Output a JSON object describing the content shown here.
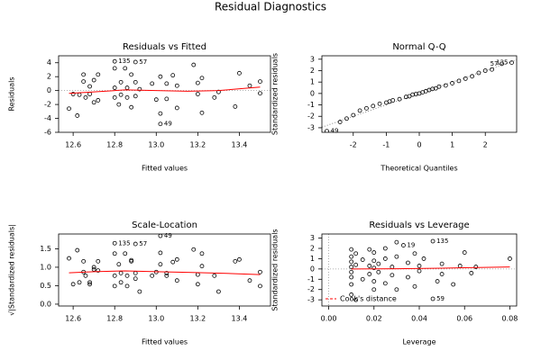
{
  "title": "Residual Diagnostics",
  "chart_data": [
    {
      "type": "scatter",
      "title": "Residuals vs Fitted",
      "x_label": "Fitted values",
      "y_label": "Residuals",
      "xlim": [
        12.53,
        13.55
      ],
      "ylim": [
        -6,
        5
      ],
      "xticks": [
        12.6,
        12.8,
        {
          "value": 13.0,
          "label": "13.0"
        },
        13.2,
        13.4
      ],
      "yticks": [
        -6,
        -4,
        -2,
        0,
        2,
        4
      ],
      "point_color": "#000000",
      "ref_hline": 0,
      "x": [
        12.58,
        12.6,
        12.62,
        12.63,
        12.65,
        12.65,
        12.66,
        12.68,
        12.68,
        12.7,
        12.7,
        12.72,
        12.72,
        12.8,
        12.8,
        12.8,
        12.8,
        12.82,
        12.83,
        12.83,
        12.85,
        12.86,
        12.86,
        12.88,
        12.88,
        12.9,
        12.9,
        12.9,
        12.92,
        12.98,
        13.0,
        13.02,
        13.02,
        13.02,
        13.05,
        13.05,
        13.08,
        13.1,
        13.1,
        13.18,
        13.2,
        13.2,
        13.22,
        13.22,
        13.28,
        13.3,
        13.38,
        13.4,
        13.45,
        13.5,
        13.5
      ],
      "y": [
        -2.6,
        -0.5,
        -3.6,
        -0.6,
        1.3,
        2.3,
        -1,
        -0.5,
        0.6,
        1.5,
        -1.7,
        2.3,
        -1.4,
        4.2,
        3.2,
        0.4,
        -1,
        -2,
        1.2,
        -0.6,
        3.2,
        0.4,
        -1,
        2.3,
        -2.4,
        4.1,
        1.2,
        -0.8,
        0.2,
        1,
        -1.3,
        -4.8,
        -3.3,
        2,
        1,
        -1.2,
        2.2,
        -2.5,
        0.7,
        3.7,
        1.1,
        -0.5,
        -3.2,
        1.8,
        -1,
        -0.2,
        -2.3,
        2.5,
        0.7,
        1.3,
        -0.4
      ],
      "point_labels": [
        null,
        null,
        null,
        null,
        null,
        null,
        null,
        null,
        null,
        null,
        null,
        null,
        null,
        "135",
        null,
        null,
        null,
        null,
        null,
        null,
        null,
        null,
        null,
        null,
        null,
        "57",
        null,
        null,
        null,
        null,
        null,
        "49",
        null,
        null,
        null,
        null,
        null,
        null,
        null,
        null,
        null,
        null,
        null,
        null,
        null,
        null,
        null,
        null,
        null,
        null,
        null
      ],
      "smooth": {
        "color": "#ff0000",
        "x": [
          12.58,
          12.7,
          12.85,
          13.0,
          13.15,
          13.3,
          13.5
        ],
        "y": [
          -0.4,
          -0.2,
          0.1,
          0,
          -0.1,
          0,
          0.5
        ]
      }
    },
    {
      "type": "scatter",
      "title": "Normal Q-Q",
      "x_label": "Theoretical Quantiles",
      "y_label": "Standardized residuals",
      "xlim": [
        -2.95,
        2.95
      ],
      "ylim": [
        -3.4,
        3.3
      ],
      "xticks": [
        -2,
        -1,
        0,
        1,
        2
      ],
      "yticks": [
        -3,
        -2,
        -1,
        0,
        1,
        2,
        3
      ],
      "point_color": "#000000",
      "x": [
        -2.8,
        -2.4,
        -2.2,
        -2.0,
        -1.8,
        -1.6,
        -1.4,
        -1.2,
        -1.0,
        -0.9,
        -0.8,
        -0.6,
        -0.4,
        -0.3,
        -0.2,
        -0.1,
        0,
        0.1,
        0.2,
        0.3,
        0.4,
        0.5,
        0.6,
        0.8,
        1.0,
        1.2,
        1.4,
        1.6,
        1.8,
        2.0,
        2.2,
        2.5,
        2.8
      ],
      "y": [
        -3.3,
        -2.5,
        -2.2,
        -1.9,
        -1.5,
        -1.3,
        -1.1,
        -0.9,
        -0.8,
        -0.7,
        -0.6,
        -0.5,
        -0.3,
        -0.25,
        -0.1,
        -0.05,
        0,
        0.1,
        0.2,
        0.3,
        0.4,
        0.45,
        0.6,
        0.7,
        0.9,
        1.1,
        1.3,
        1.5,
        1.8,
        2.0,
        2.1,
        2.6,
        2.7
      ],
      "point_labels": [
        "49",
        null,
        null,
        null,
        null,
        null,
        null,
        null,
        null,
        null,
        null,
        null,
        null,
        null,
        null,
        null,
        null,
        null,
        null,
        null,
        null,
        null,
        null,
        null,
        null,
        null,
        null,
        null,
        null,
        null,
        null,
        "57",
        "135"
      ],
      "reference": {
        "color": "#888888",
        "x": [
          -2.95,
          2.95
        ],
        "y": [
          -2.95,
          2.95
        ]
      }
    },
    {
      "type": "scatter",
      "title": "Scale-Location",
      "x_label": "Fitted values",
      "y_label": "√|Standardized residuals|",
      "xlim": [
        12.53,
        13.55
      ],
      "ylim": [
        -0.05,
        1.9
      ],
      "xticks": [
        12.6,
        12.8,
        {
          "value": 13.0,
          "label": "13.0"
        },
        13.2,
        13.4
      ],
      "yticks": [
        {
          "value": 0,
          "label": "0.0"
        },
        0.5,
        {
          "value": 1,
          "label": "1.0"
        },
        1.5
      ],
      "point_color": "#000000",
      "x": [
        12.58,
        12.6,
        12.62,
        12.63,
        12.65,
        12.65,
        12.66,
        12.68,
        12.68,
        12.7,
        12.7,
        12.72,
        12.72,
        12.8,
        12.8,
        12.8,
        12.8,
        12.82,
        12.83,
        12.83,
        12.85,
        12.86,
        12.86,
        12.88,
        12.88,
        12.9,
        12.9,
        12.9,
        12.92,
        12.98,
        13.0,
        13.02,
        13.02,
        13.02,
        13.05,
        13.05,
        13.08,
        13.1,
        13.1,
        13.18,
        13.2,
        13.2,
        13.22,
        13.22,
        13.28,
        13.3,
        13.38,
        13.4,
        13.45,
        13.5,
        13.5
      ],
      "y": [
        1.24,
        0.54,
        1.46,
        0.59,
        0.87,
        1.16,
        0.77,
        0.54,
        0.59,
        0.94,
        1.0,
        1.16,
        0.91,
        1.65,
        1.37,
        0.49,
        0.77,
        1.08,
        0.84,
        0.59,
        1.37,
        0.49,
        0.77,
        1.16,
        1.19,
        1.63,
        0.84,
        0.69,
        0.34,
        0.77,
        0.87,
        1.85,
        1.39,
        1.08,
        0.77,
        0.84,
        1.14,
        1.21,
        0.64,
        1.48,
        0.8,
        0.54,
        1.37,
        1.03,
        0.77,
        0.34,
        1.16,
        1.21,
        0.64,
        0.87,
        0.49
      ],
      "point_labels": [
        null,
        null,
        null,
        null,
        null,
        null,
        null,
        null,
        null,
        null,
        null,
        null,
        null,
        "135",
        null,
        null,
        null,
        null,
        null,
        null,
        null,
        null,
        null,
        null,
        null,
        "57",
        null,
        null,
        null,
        null,
        null,
        "49",
        null,
        null,
        null,
        null,
        null,
        null,
        null,
        null,
        null,
        null,
        null,
        null,
        null,
        null,
        null,
        null,
        null,
        null,
        null
      ],
      "smooth": {
        "color": "#ff0000",
        "x": [
          12.58,
          12.7,
          12.85,
          13.0,
          13.15,
          13.3,
          13.5
        ],
        "y": [
          0.85,
          0.88,
          0.9,
          0.88,
          0.86,
          0.84,
          0.8
        ]
      }
    },
    {
      "type": "scatter",
      "title": "Residuals vs Leverage",
      "x_label": "Leverage",
      "y_label": "Standardized residuals",
      "xlim": [
        -0.003,
        0.083
      ],
      "ylim": [
        -3.6,
        3.4
      ],
      "xticks": [
        {
          "value": 0,
          "label": "0.00"
        },
        {
          "value": 0.02,
          "label": "0.02"
        },
        {
          "value": 0.04,
          "label": "0.04"
        },
        {
          "value": 0.06,
          "label": "0.06"
        },
        {
          "value": 0.08,
          "label": "0.08"
        }
      ],
      "yticks": [
        -3,
        -2,
        -1,
        0,
        1,
        2,
        3
      ],
      "point_color": "#000000",
      "ref_hline": 0,
      "ref_vline": 0,
      "x": [
        0.01,
        0.01,
        0.01,
        0.01,
        0.01,
        0.01,
        0.01,
        0.01,
        0.012,
        0.012,
        0.012,
        0.015,
        0.015,
        0.018,
        0.018,
        0.018,
        0.02,
        0.02,
        0.02,
        0.02,
        0.02,
        0.022,
        0.022,
        0.025,
        0.025,
        0.025,
        0.028,
        0.028,
        0.03,
        0.03,
        0.03,
        0.033,
        0.035,
        0.035,
        0.038,
        0.038,
        0.04,
        0.04,
        0.042,
        0.046,
        0.046,
        0.048,
        0.05,
        0.05,
        0.055,
        0.058,
        0.06,
        0.063,
        0.065,
        0.08
      ],
      "y": [
        -2.5,
        -1.5,
        -0.8,
        -0.3,
        0.2,
        0.7,
        1.2,
        1.9,
        -3.0,
        0.4,
        1.5,
        -1.0,
        0.9,
        -0.5,
        0.3,
        1.9,
        -2.0,
        -1.2,
        0.1,
        0.8,
        1.6,
        -0.3,
        0.5,
        -1.4,
        1.0,
        2.0,
        0.2,
        -0.6,
        -2.0,
        1.2,
        2.6,
        2.3,
        -0.8,
        0.6,
        -1.7,
        1.5,
        0.3,
        -0.2,
        1.0,
        2.7,
        -2.9,
        -1.2,
        0.5,
        -0.5,
        -1.5,
        0.3,
        1.6,
        -0.4,
        0.2,
        1.0
      ],
      "point_labels": [
        null,
        null,
        null,
        null,
        null,
        null,
        null,
        null,
        null,
        null,
        null,
        null,
        null,
        null,
        null,
        null,
        null,
        null,
        null,
        null,
        null,
        null,
        null,
        null,
        null,
        null,
        null,
        null,
        null,
        null,
        null,
        "19",
        null,
        null,
        null,
        null,
        null,
        null,
        null,
        "135",
        "59",
        null,
        null,
        null,
        null,
        null,
        null,
        null,
        null,
        null
      ],
      "smooth": {
        "color": "#ff0000",
        "x": [
          0.01,
          0.03,
          0.05,
          0.08
        ],
        "y": [
          0,
          0.02,
          0.08,
          0.2
        ]
      },
      "legend": {
        "position": "bottom-left",
        "entries": [
          {
            "name": "Cook's distance",
            "color": "#ff0000"
          }
        ]
      }
    }
  ]
}
